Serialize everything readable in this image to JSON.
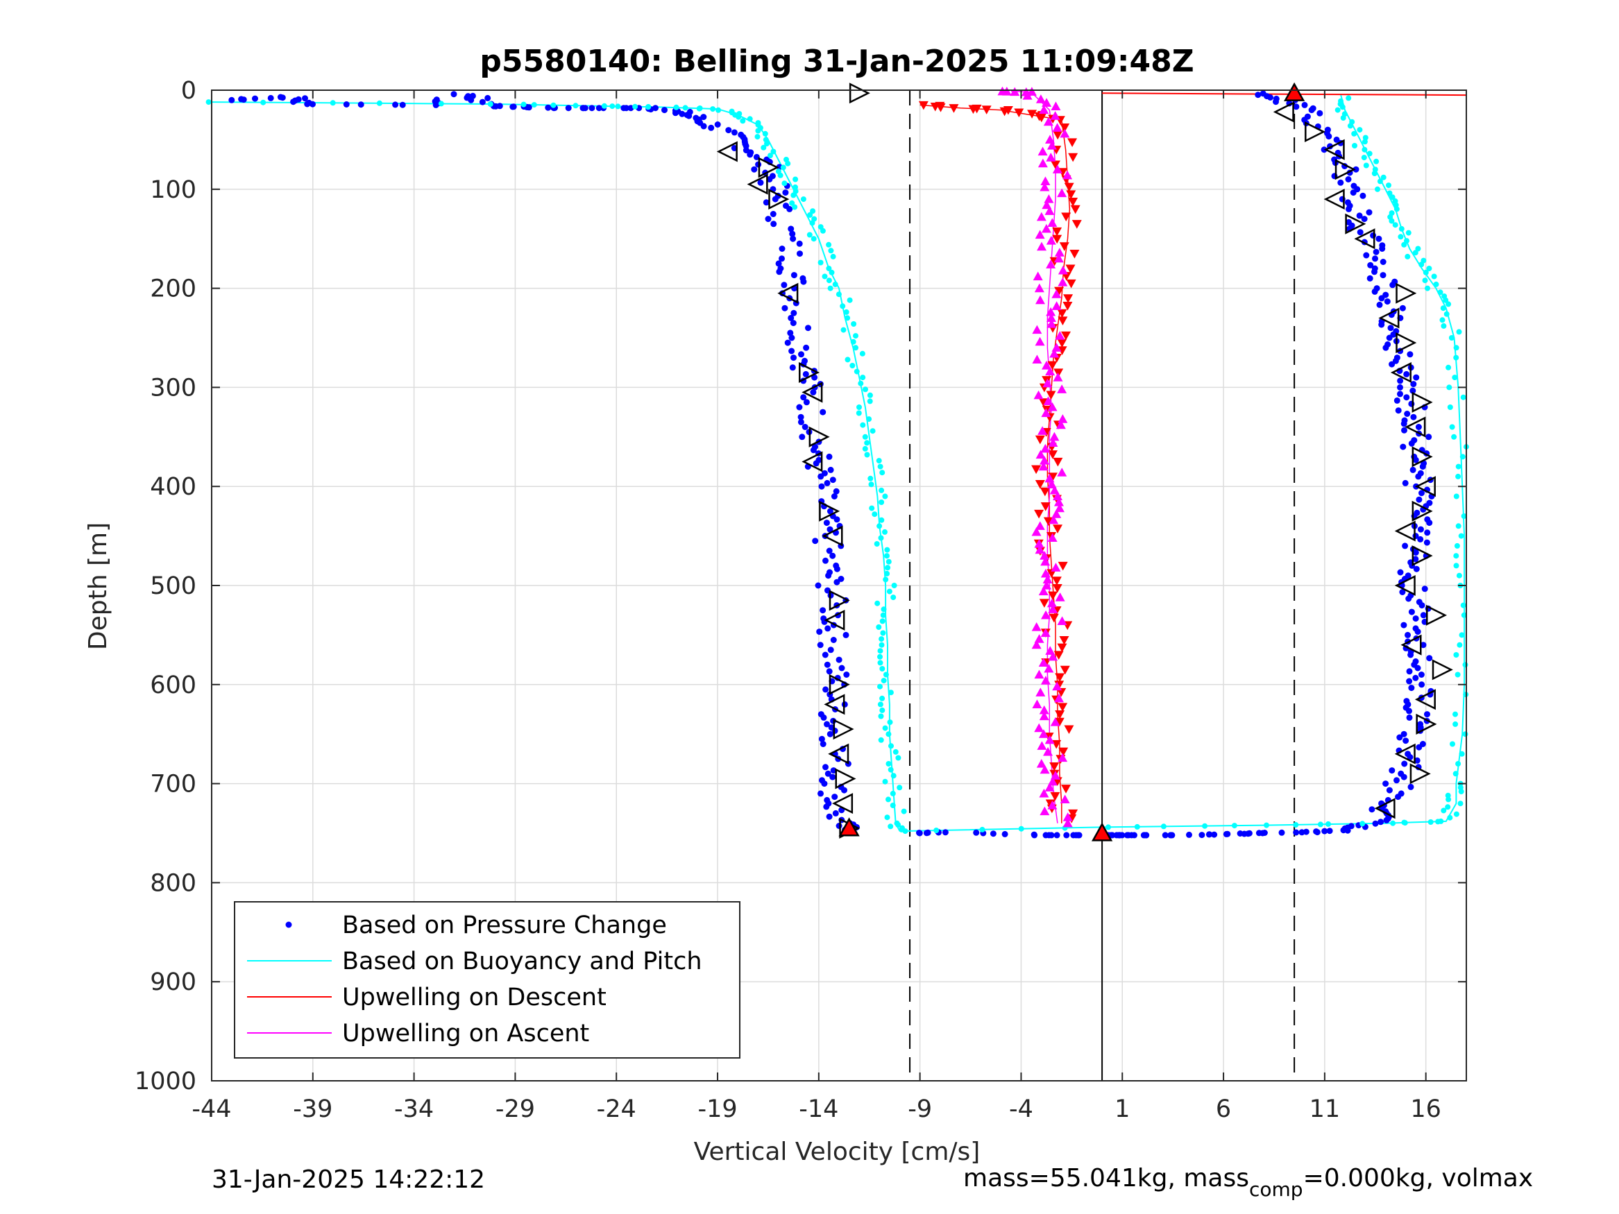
{
  "chart_data": {
    "type": "scatter",
    "title": "p5580140: Belling 31-Jan-2025 11:09:48Z",
    "xlabel": "Vertical Velocity [cm/s]",
    "ylabel": "Depth [m]",
    "xlim": [
      -44,
      18
    ],
    "ylim": [
      0,
      1000
    ],
    "y_reversed": true,
    "grid": true,
    "xticks": [
      -44,
      -39,
      -34,
      -29,
      -24,
      -19,
      -14,
      -9,
      -4,
      1,
      6,
      11,
      16
    ],
    "yticks": [
      0,
      100,
      200,
      300,
      400,
      500,
      600,
      700,
      800,
      900,
      1000
    ],
    "xtick_labels": [
      "-44",
      "-39",
      "-34",
      "-29",
      "-24",
      "-19",
      "-14",
      "-9",
      "-4",
      "1",
      "6",
      "11",
      "16"
    ],
    "ytick_labels": [
      "0",
      "100",
      "200",
      "300",
      "400",
      "500",
      "600",
      "700",
      "800",
      "900",
      "1000"
    ],
    "legend_position": "bottom-left",
    "legend": [
      {
        "label": "Based on Pressure Change",
        "style": "dot",
        "color": "#0000ff"
      },
      {
        "label": "Based on Buoyancy and Pitch",
        "style": "line",
        "color": "#00ffff"
      },
      {
        "label": "Upwelling on Descent",
        "style": "line",
        "color": "#ff0000"
      },
      {
        "label": "Upwelling on Ascent",
        "style": "line",
        "color": "#ff00ff"
      }
    ],
    "vertical_lines": [
      {
        "x": -9.5,
        "style": "dashed",
        "color": "#000000"
      },
      {
        "x": 0,
        "style": "solid",
        "color": "#000000"
      },
      {
        "x": 9.5,
        "style": "dashed",
        "color": "#000000"
      }
    ],
    "series": [
      {
        "name": "Based on Pressure Change",
        "color": "#0000ff",
        "marker": "dot",
        "descent": [
          [
            -43,
            10
          ],
          [
            -40,
            7
          ],
          [
            -39.5,
            14
          ],
          [
            -33,
            15
          ],
          [
            -31.5,
            4
          ],
          [
            -30,
            16
          ],
          [
            -28.5,
            17
          ],
          [
            -26.5,
            18
          ],
          [
            -25,
            18
          ],
          [
            -22,
            18
          ],
          [
            -21,
            22
          ],
          [
            -20,
            28
          ],
          [
            -19,
            38
          ],
          [
            -18,
            52
          ],
          [
            -17,
            65
          ],
          [
            -16.5,
            80
          ],
          [
            -16.2,
            100
          ],
          [
            -16,
            120
          ],
          [
            -15.5,
            150
          ],
          [
            -15.3,
            180
          ],
          [
            -15.2,
            200
          ],
          [
            -15,
            230
          ],
          [
            -14.8,
            260
          ],
          [
            -14.6,
            280
          ],
          [
            -14.5,
            300
          ],
          [
            -14.3,
            330
          ],
          [
            -14.1,
            360
          ],
          [
            -14,
            380
          ],
          [
            -13.8,
            400
          ],
          [
            -13.7,
            430
          ],
          [
            -13.6,
            450
          ],
          [
            -13.5,
            480
          ],
          [
            -13.4,
            500
          ],
          [
            -13.3,
            530
          ],
          [
            -13.3,
            550
          ],
          [
            -13.2,
            580
          ],
          [
            -13.2,
            600
          ],
          [
            -13.3,
            630
          ],
          [
            -13.2,
            650
          ],
          [
            -13.1,
            680
          ],
          [
            -13.2,
            700
          ],
          [
            -13.3,
            720
          ],
          [
            -13,
            740
          ],
          [
            -12.5,
            748
          ]
        ],
        "ascent": [
          [
            -9,
            750
          ],
          [
            -7.5,
            749
          ],
          [
            -3,
            752
          ],
          [
            -1.5,
            752
          ],
          [
            0.5,
            752
          ],
          [
            1,
            752
          ],
          [
            2,
            752
          ],
          [
            4,
            752
          ],
          [
            6,
            751
          ],
          [
            8,
            750
          ],
          [
            10,
            749
          ],
          [
            12,
            747
          ],
          [
            13,
            742
          ],
          [
            13.8,
            732
          ],
          [
            14.2,
            720
          ],
          [
            14.7,
            700
          ],
          [
            15,
            680
          ],
          [
            15.3,
            660
          ],
          [
            15.5,
            640
          ],
          [
            15.7,
            620
          ],
          [
            15.8,
            600
          ],
          [
            15.8,
            580
          ],
          [
            15.7,
            560
          ],
          [
            15.6,
            540
          ],
          [
            15.5,
            520
          ],
          [
            15.4,
            500
          ],
          [
            15.4,
            480
          ],
          [
            15.5,
            460
          ],
          [
            15.5,
            440
          ],
          [
            15.6,
            420
          ],
          [
            15.6,
            400
          ],
          [
            15.5,
            380
          ],
          [
            15.5,
            360
          ],
          [
            15.4,
            340
          ],
          [
            15.3,
            320
          ],
          [
            15.1,
            300
          ],
          [
            14.8,
            280
          ],
          [
            14.6,
            260
          ],
          [
            14.5,
            240
          ],
          [
            14.3,
            220
          ],
          [
            14.1,
            200
          ],
          [
            13.7,
            180
          ],
          [
            13.3,
            160
          ],
          [
            12.8,
            140
          ],
          [
            12.5,
            120
          ],
          [
            12.2,
            100
          ],
          [
            11.9,
            80
          ],
          [
            11.5,
            60
          ],
          [
            11,
            40
          ],
          [
            10,
            20
          ],
          [
            9,
            10
          ],
          [
            8,
            2
          ]
        ]
      },
      {
        "name": "Based on Buoyancy and Pitch",
        "color": "#00ffff",
        "marker": "line",
        "descent": [
          [
            -44,
            12
          ],
          [
            -30,
            14
          ],
          [
            -25,
            16
          ],
          [
            -22,
            17
          ],
          [
            -19,
            19
          ],
          [
            -18,
            25
          ],
          [
            -17,
            35
          ],
          [
            -16.5,
            50
          ],
          [
            -16,
            70
          ],
          [
            -15.5,
            90
          ],
          [
            -15,
            110
          ],
          [
            -14.5,
            130
          ],
          [
            -14,
            150
          ],
          [
            -13.5,
            180
          ],
          [
            -13,
            200
          ],
          [
            -12.7,
            230
          ],
          [
            -12.3,
            260
          ],
          [
            -12,
            290
          ],
          [
            -11.7,
            320
          ],
          [
            -11.5,
            350
          ],
          [
            -11.3,
            380
          ],
          [
            -11.1,
            410
          ],
          [
            -11,
            440
          ],
          [
            -10.8,
            470
          ],
          [
            -10.7,
            500
          ],
          [
            -10.7,
            530
          ],
          [
            -10.6,
            560
          ],
          [
            -10.6,
            590
          ],
          [
            -10.5,
            620
          ],
          [
            -10.5,
            650
          ],
          [
            -10.4,
            680
          ],
          [
            -10.3,
            710
          ],
          [
            -10.2,
            740
          ],
          [
            -10,
            748
          ]
        ],
        "ascent": [
          [
            -10,
            748
          ],
          [
            0,
            744
          ],
          [
            8,
            742
          ],
          [
            14,
            740
          ],
          [
            17,
            738
          ],
          [
            17.5,
            720
          ],
          [
            17.5,
            700
          ],
          [
            17.8,
            650
          ],
          [
            17.9,
            600
          ],
          [
            17.9,
            550
          ],
          [
            17.9,
            500
          ],
          [
            17.9,
            450
          ],
          [
            17.8,
            400
          ],
          [
            17.7,
            350
          ],
          [
            17.6,
            300
          ],
          [
            17.4,
            250
          ],
          [
            17,
            220
          ],
          [
            16.5,
            200
          ],
          [
            15.8,
            180
          ],
          [
            15.2,
            160
          ],
          [
            14.8,
            140
          ],
          [
            14.5,
            120
          ],
          [
            14,
            100
          ],
          [
            13.5,
            80
          ],
          [
            13,
            60
          ],
          [
            12.5,
            40
          ],
          [
            12,
            20
          ],
          [
            11.8,
            5
          ]
        ]
      },
      {
        "name": "Upwelling on Descent",
        "color": "#ff0000",
        "marker": "triangle-down",
        "points": [
          [
            -9,
            15
          ],
          [
            -7,
            18
          ],
          [
            -5,
            20
          ],
          [
            -3.5,
            25
          ],
          [
            -2,
            30
          ],
          [
            -1.8,
            60
          ],
          [
            -1.7,
            90
          ],
          [
            -1.6,
            120
          ],
          [
            -1.7,
            150
          ],
          [
            -1.9,
            180
          ],
          [
            -2,
            210
          ],
          [
            -2.2,
            240
          ],
          [
            -2.4,
            270
          ],
          [
            -2.5,
            300
          ],
          [
            -2.6,
            330
          ],
          [
            -2.7,
            360
          ],
          [
            -2.7,
            390
          ],
          [
            -2.6,
            420
          ],
          [
            -2.6,
            450
          ],
          [
            -2.5,
            480
          ],
          [
            -2.4,
            510
          ],
          [
            -2.3,
            540
          ],
          [
            -2.3,
            570
          ],
          [
            -2.2,
            600
          ],
          [
            -2.2,
            630
          ],
          [
            -2.1,
            660
          ],
          [
            -2.1,
            690
          ],
          [
            -2.0,
            720
          ],
          [
            -2.0,
            740
          ]
        ],
        "surface_line": [
          [
            0,
            3
          ],
          [
            18,
            5
          ]
        ]
      },
      {
        "name": "Upwelling on Ascent",
        "color": "#ff00ff",
        "marker": "triangle-up",
        "points": [
          [
            -2.2,
            740
          ],
          [
            -2.4,
            710
          ],
          [
            -2.5,
            680
          ],
          [
            -2.6,
            650
          ],
          [
            -2.6,
            620
          ],
          [
            -2.7,
            590
          ],
          [
            -2.7,
            560
          ],
          [
            -2.6,
            530
          ],
          [
            -2.6,
            500
          ],
          [
            -2.7,
            470
          ],
          [
            -2.7,
            440
          ],
          [
            -2.6,
            410
          ],
          [
            -2.6,
            380
          ],
          [
            -2.6,
            350
          ],
          [
            -2.5,
            320
          ],
          [
            -2.6,
            290
          ],
          [
            -2.7,
            260
          ],
          [
            -2.7,
            230
          ],
          [
            -2.6,
            200
          ],
          [
            -2.5,
            170
          ],
          [
            -2.4,
            140
          ],
          [
            -2.3,
            110
          ],
          [
            -2.3,
            80
          ],
          [
            -2.4,
            50
          ],
          [
            -2.6,
            20
          ],
          [
            -3.5,
            2
          ],
          [
            -4.5,
            1
          ]
        ]
      },
      {
        "marker": "open-triangles",
        "color": "#000000",
        "points": [
          [
            -12,
            3
          ],
          [
            -18.5,
            62
          ],
          [
            -16.5,
            78
          ],
          [
            -17,
            95
          ],
          [
            -16,
            110
          ],
          [
            -15.5,
            205
          ],
          [
            -14.5,
            285
          ],
          [
            -14.3,
            305
          ],
          [
            -14,
            350
          ],
          [
            -14.3,
            375
          ],
          [
            -13.5,
            425
          ],
          [
            -13.3,
            450
          ],
          [
            -13,
            515
          ],
          [
            -13.2,
            535
          ],
          [
            -13,
            600
          ],
          [
            -13.2,
            620
          ],
          [
            -12.8,
            645
          ],
          [
            -13,
            670
          ],
          [
            -12.7,
            695
          ],
          [
            -12.8,
            720
          ],
          [
            -12.5,
            745
          ],
          [
            9,
            22
          ],
          [
            10.5,
            42
          ],
          [
            11.5,
            60
          ],
          [
            12,
            80
          ],
          [
            11.5,
            110
          ],
          [
            12.5,
            135
          ],
          [
            13,
            150
          ],
          [
            15,
            205
          ],
          [
            14.2,
            230
          ],
          [
            15,
            255
          ],
          [
            14.8,
            285
          ],
          [
            15.8,
            315
          ],
          [
            15.5,
            340
          ],
          [
            15.8,
            370
          ],
          [
            16,
            400
          ],
          [
            15.8,
            425
          ],
          [
            15,
            445
          ],
          [
            15.8,
            470
          ],
          [
            15,
            500
          ],
          [
            16.5,
            530
          ],
          [
            15.3,
            560
          ],
          [
            16.8,
            585
          ],
          [
            16,
            615
          ],
          [
            16,
            640
          ],
          [
            15,
            670
          ],
          [
            15.7,
            690
          ],
          [
            14,
            725
          ]
        ]
      },
      {
        "marker": "filled-red-triangle",
        "color": "#ff0000",
        "points": [
          [
            9.5,
            3
          ],
          [
            0,
            750
          ],
          [
            -12.5,
            745
          ]
        ]
      }
    ]
  },
  "footer": {
    "timestamp": "31-Jan-2025 14:22:12",
    "mass_prefix": "mass=55.041kg, mass",
    "mass_sub": "comp",
    "mass_suffix": "=0.000kg, volmax"
  }
}
